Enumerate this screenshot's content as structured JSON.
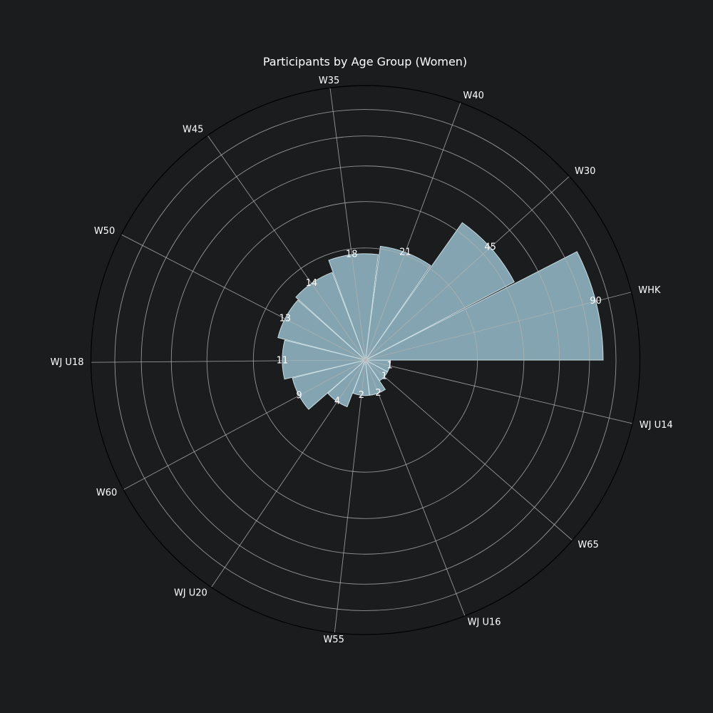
{
  "chart_data": {
    "type": "bar",
    "subtype": "polar",
    "title": "Participants by Age Group (Women)",
    "radial_scale": "sqrt",
    "radial_ticks": "unlabeled",
    "rlim": [
      0,
      120
    ],
    "grid": true,
    "legend": "none",
    "categories": [
      "WHK",
      "W30",
      "W40",
      "W35",
      "W45",
      "W50",
      "WJ U18",
      "W60",
      "WJ U20",
      "W55",
      "WJ U16",
      "W65",
      "WJ U14"
    ],
    "values": [
      90,
      45,
      21,
      18,
      14,
      13,
      11,
      9,
      4,
      2,
      2,
      1,
      1
    ],
    "value_labels": [
      "90",
      "45",
      "21",
      "18",
      "14",
      "13",
      "11",
      "9",
      "4",
      "2",
      "2",
      "1",
      "1"
    ],
    "colors": {
      "background": "#1b1c1e",
      "bar_fill": "#8fb4c0",
      "bar_edge": "#c9dde3",
      "grid": "#b3b3b3",
      "text": "#ffffff",
      "outer_ring": "#000000"
    }
  }
}
